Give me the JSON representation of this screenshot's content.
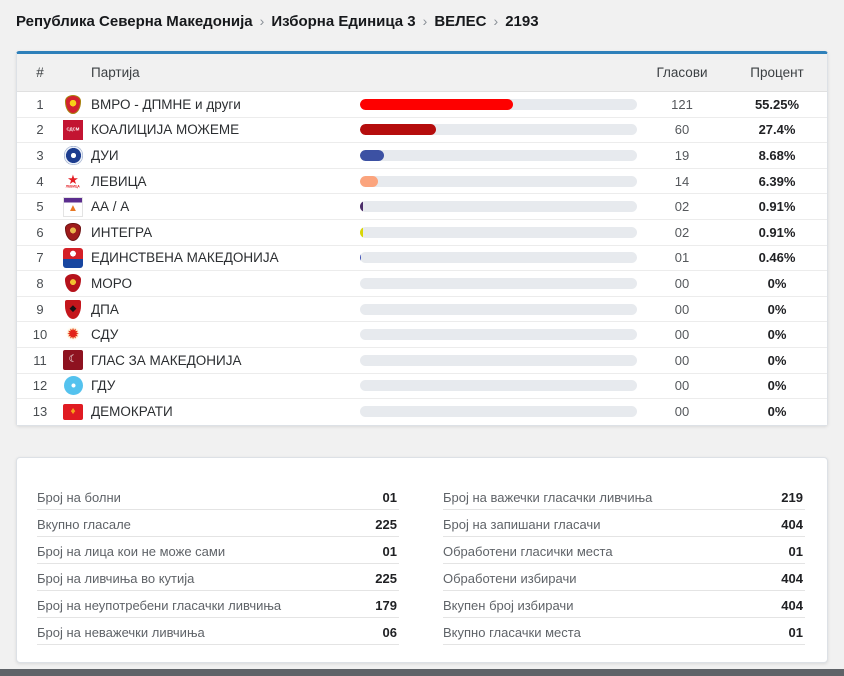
{
  "breadcrumb": {
    "separator": "›",
    "items": [
      "Република Северна Македонија",
      "Изборна Единица 3",
      "ВЕЛЕС",
      "2193"
    ]
  },
  "results_table": {
    "headers": {
      "num": "#",
      "party": "Партија",
      "votes": "Гласови",
      "percent": "Процент"
    },
    "rows": [
      {
        "num": "1",
        "party": "ВМРО - ДПМНЕ и други",
        "votes": "121",
        "percent": "55.25%",
        "bar_pct": 55.25,
        "bar_color": "#fe0000",
        "logo": "vmro-dpmne-logo"
      },
      {
        "num": "2",
        "party": "КОАЛИЦИЈА МОЖЕМЕ",
        "votes": "60",
        "percent": "27.4%",
        "bar_pct": 27.4,
        "bar_color": "#b50d0d",
        "logo": "sdsm-logo"
      },
      {
        "num": "3",
        "party": "ДУИ",
        "votes": "19",
        "percent": "8.68%",
        "bar_pct": 8.68,
        "bar_color": "#3c51a3",
        "logo": "dui-logo"
      },
      {
        "num": "4",
        "party": "ЛЕВИЦА",
        "votes": "14",
        "percent": "6.39%",
        "bar_pct": 6.39,
        "bar_color": "#fba47d",
        "logo": "levica-logo"
      },
      {
        "num": "5",
        "party": "АА / А",
        "votes": "02",
        "percent": "0.91%",
        "bar_pct": 0.91,
        "bar_color": "#4b2d69",
        "logo": "aa-a-logo"
      },
      {
        "num": "6",
        "party": "ИНТЕГРА",
        "votes": "02",
        "percent": "0.91%",
        "bar_pct": 0.91,
        "bar_color": "#d9d606",
        "logo": "integra-logo"
      },
      {
        "num": "7",
        "party": "ЕДИНСТВЕНА МАКЕДОНИЈА",
        "votes": "01",
        "percent": "0.46%",
        "bar_pct": 0.46,
        "bar_color": "#3f51b5",
        "logo": "edinstvena-makedonija-logo"
      },
      {
        "num": "8",
        "party": "МОРО",
        "votes": "00",
        "percent": "0%",
        "bar_pct": 0,
        "bar_color": null,
        "logo": "moro-logo"
      },
      {
        "num": "9",
        "party": "ДПА",
        "votes": "00",
        "percent": "0%",
        "bar_pct": 0,
        "bar_color": null,
        "logo": "dpa-logo"
      },
      {
        "num": "10",
        "party": "СДУ",
        "votes": "00",
        "percent": "0%",
        "bar_pct": 0,
        "bar_color": null,
        "logo": "sdu-logo"
      },
      {
        "num": "11",
        "party": "ГЛАС ЗА МАКЕДОНИЈА",
        "votes": "00",
        "percent": "0%",
        "bar_pct": 0,
        "bar_color": null,
        "logo": "glas-za-makedonija-logo"
      },
      {
        "num": "12",
        "party": "ГДУ",
        "votes": "00",
        "percent": "0%",
        "bar_pct": 0,
        "bar_color": null,
        "logo": "gdu-logo"
      },
      {
        "num": "13",
        "party": "ДЕМОКРАТИ",
        "votes": "00",
        "percent": "0%",
        "bar_pct": 0,
        "bar_color": null,
        "logo": "demokrati-logo"
      }
    ]
  },
  "stats": {
    "left": [
      {
        "label": "Број на болни",
        "value": "01"
      },
      {
        "label": "Вкупно гласале",
        "value": "225"
      },
      {
        "label": "Број на лица кои не може сами",
        "value": "01"
      },
      {
        "label": "Број на ливчиња во кутија",
        "value": "225"
      },
      {
        "label": "Број на неупотребени гласачки ливчиња",
        "value": "179"
      },
      {
        "label": "Број на неважечки ливчиња",
        "value": "06"
      }
    ],
    "right": [
      {
        "label": "Број на важечки гласачки ливчиња",
        "value": "219"
      },
      {
        "label": "Број на запишани гласачи",
        "value": "404"
      },
      {
        "label": "Обработени гласички места",
        "value": "01"
      },
      {
        "label": "Обработени избирачи",
        "value": "404"
      },
      {
        "label": "Вкупен број избирачи",
        "value": "404"
      },
      {
        "label": "Вкупно гласачки места",
        "value": "01"
      }
    ]
  },
  "colors": {
    "accent_top_border": "#2e80ba",
    "bar_track": "#e7eaee",
    "page_background": "#f1f1f1",
    "footer_bar": "#5f6368"
  }
}
